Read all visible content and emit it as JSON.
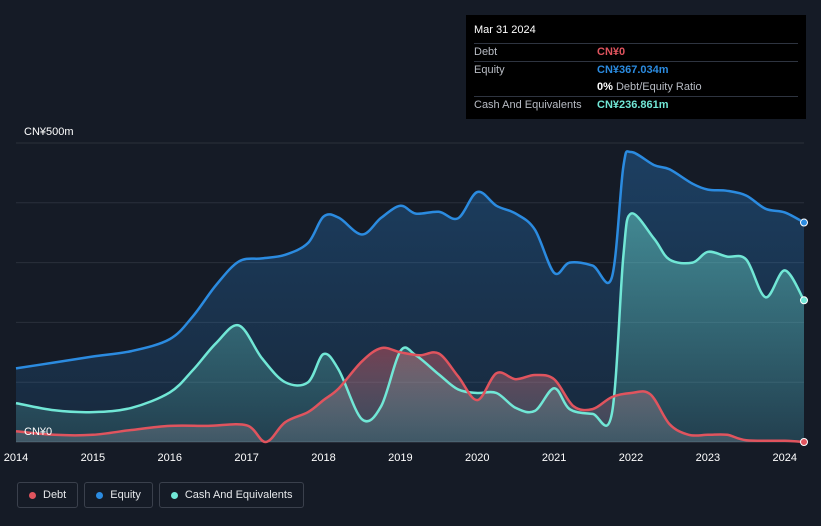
{
  "colors": {
    "background": "#151b26",
    "debt": "#e0545e",
    "equity": "#2b8be0",
    "cash": "#71e7d6",
    "grid": "#2a303b"
  },
  "tooltip": {
    "date": "Mar 31 2024",
    "debt_label": "Debt",
    "debt_value": "CN¥0",
    "equity_label": "Equity",
    "equity_value": "CN¥367.034m",
    "ratio_value": "0%",
    "ratio_label": "Debt/Equity Ratio",
    "cash_label": "Cash And Equivalents",
    "cash_value": "CN¥236.861m"
  },
  "legend": {
    "debt": "Debt",
    "equity": "Equity",
    "cash": "Cash And Equivalents"
  },
  "chart_data": {
    "type": "area",
    "x_ticks": [
      "2014",
      "2015",
      "2016",
      "2017",
      "2018",
      "2019",
      "2020",
      "2021",
      "2022",
      "2023",
      "2024"
    ],
    "y_labels": {
      "top": "CN¥500m",
      "bottom": "CN¥0"
    },
    "ylim": [
      0,
      500
    ],
    "xlim": [
      2014.0,
      2024.25
    ],
    "series": [
      {
        "name": "Equity",
        "points": [
          [
            2014.0,
            123
          ],
          [
            2014.5,
            133
          ],
          [
            2015.0,
            143
          ],
          [
            2015.5,
            152
          ],
          [
            2016.0,
            172
          ],
          [
            2016.3,
            210
          ],
          [
            2016.6,
            262
          ],
          [
            2016.9,
            302
          ],
          [
            2017.2,
            307
          ],
          [
            2017.5,
            313
          ],
          [
            2017.8,
            333
          ],
          [
            2018.0,
            377
          ],
          [
            2018.2,
            375
          ],
          [
            2018.5,
            347
          ],
          [
            2018.75,
            375
          ],
          [
            2019.0,
            395
          ],
          [
            2019.2,
            382
          ],
          [
            2019.5,
            385
          ],
          [
            2019.75,
            374
          ],
          [
            2020.0,
            418
          ],
          [
            2020.25,
            395
          ],
          [
            2020.5,
            382
          ],
          [
            2020.75,
            355
          ],
          [
            2021.0,
            283
          ],
          [
            2021.2,
            300
          ],
          [
            2021.5,
            295
          ],
          [
            2021.75,
            275
          ],
          [
            2021.9,
            460
          ],
          [
            2022.0,
            485
          ],
          [
            2022.3,
            463
          ],
          [
            2022.5,
            456
          ],
          [
            2022.8,
            432
          ],
          [
            2023.0,
            422
          ],
          [
            2023.25,
            420
          ],
          [
            2023.5,
            412
          ],
          [
            2023.75,
            390
          ],
          [
            2024.0,
            384
          ],
          [
            2024.25,
            367
          ]
        ]
      },
      {
        "name": "Cash And Equivalents",
        "points": [
          [
            2014.0,
            65
          ],
          [
            2014.5,
            53
          ],
          [
            2015.0,
            50
          ],
          [
            2015.5,
            57
          ],
          [
            2016.0,
            83
          ],
          [
            2016.3,
            120
          ],
          [
            2016.6,
            165
          ],
          [
            2016.9,
            195
          ],
          [
            2017.2,
            140
          ],
          [
            2017.5,
            100
          ],
          [
            2017.8,
            100
          ],
          [
            2018.0,
            147
          ],
          [
            2018.2,
            120
          ],
          [
            2018.5,
            38
          ],
          [
            2018.75,
            60
          ],
          [
            2019.0,
            152
          ],
          [
            2019.2,
            145
          ],
          [
            2019.5,
            113
          ],
          [
            2019.75,
            88
          ],
          [
            2020.0,
            82
          ],
          [
            2020.25,
            82
          ],
          [
            2020.5,
            57
          ],
          [
            2020.75,
            52
          ],
          [
            2021.0,
            90
          ],
          [
            2021.2,
            55
          ],
          [
            2021.5,
            47
          ],
          [
            2021.75,
            47
          ],
          [
            2021.9,
            310
          ],
          [
            2022.0,
            382
          ],
          [
            2022.3,
            340
          ],
          [
            2022.5,
            305
          ],
          [
            2022.8,
            300
          ],
          [
            2023.0,
            318
          ],
          [
            2023.25,
            310
          ],
          [
            2023.5,
            305
          ],
          [
            2023.75,
            242
          ],
          [
            2024.0,
            287
          ],
          [
            2024.25,
            237
          ]
        ]
      },
      {
        "name": "Debt",
        "points": [
          [
            2014.0,
            18
          ],
          [
            2014.5,
            12
          ],
          [
            2015.0,
            12
          ],
          [
            2015.5,
            20
          ],
          [
            2016.0,
            27
          ],
          [
            2016.5,
            27
          ],
          [
            2017.0,
            28
          ],
          [
            2017.25,
            0
          ],
          [
            2017.5,
            33
          ],
          [
            2017.8,
            50
          ],
          [
            2018.0,
            70
          ],
          [
            2018.2,
            90
          ],
          [
            2018.5,
            135
          ],
          [
            2018.75,
            157
          ],
          [
            2019.0,
            150
          ],
          [
            2019.25,
            145
          ],
          [
            2019.5,
            148
          ],
          [
            2019.75,
            110
          ],
          [
            2020.0,
            70
          ],
          [
            2020.25,
            115
          ],
          [
            2020.5,
            105
          ],
          [
            2020.75,
            112
          ],
          [
            2021.0,
            105
          ],
          [
            2021.25,
            60
          ],
          [
            2021.5,
            55
          ],
          [
            2021.75,
            75
          ],
          [
            2022.0,
            82
          ],
          [
            2022.25,
            80
          ],
          [
            2022.5,
            30
          ],
          [
            2022.75,
            12
          ],
          [
            2023.0,
            12
          ],
          [
            2023.25,
            12
          ],
          [
            2023.5,
            3
          ],
          [
            2024.0,
            2
          ],
          [
            2024.25,
            0
          ]
        ]
      }
    ]
  }
}
